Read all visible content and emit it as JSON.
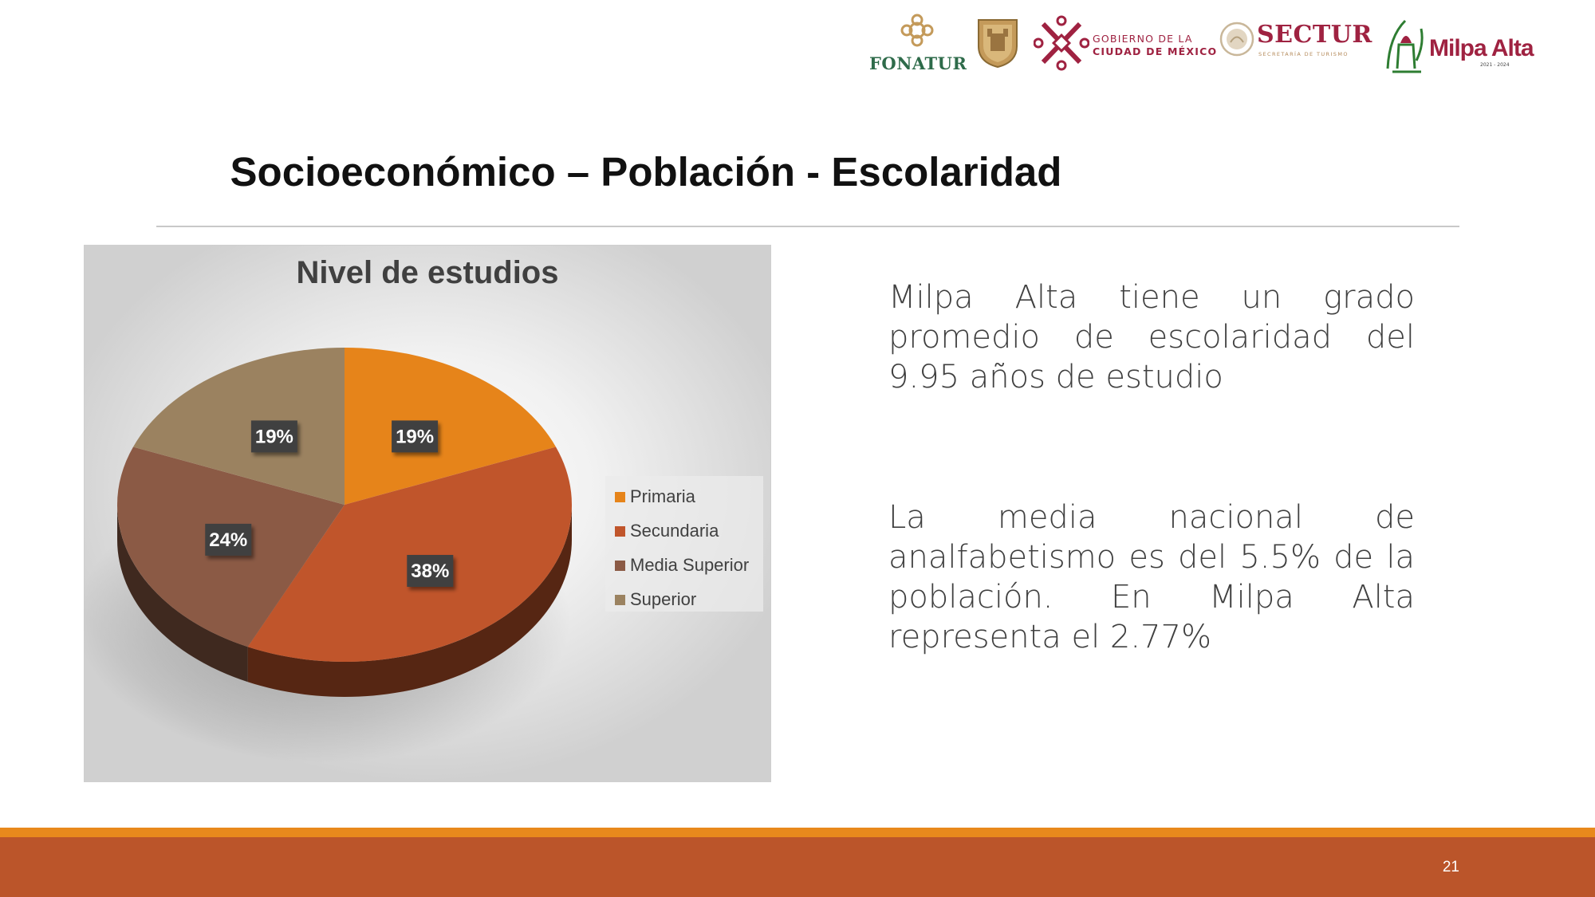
{
  "logos": {
    "fonatur_label": "FONATUR",
    "cdmx_line1": "GOBIERNO DE LA",
    "cdmx_line2": "CIUDAD DE MÉXICO",
    "sectur_label": "SECTUR",
    "sectur_sub": "SECRETARÍA DE TURISMO",
    "milpa_label": "Milpa Alta",
    "milpa_sub": "2021 - 2024",
    "brand_color": "#9f2241"
  },
  "slide": {
    "title": "Socioeconómico – Población - Escolaridad",
    "page_number": "21"
  },
  "text": {
    "paragraph_1": "Milpa Alta tiene un grado promedio de escolaridad del 9.95  años de estudio",
    "paragraph_2": "La media nacional de analfabetismo es del 5.5% de la población. En Milpa Alta representa el 2.77%"
  },
  "colors": {
    "footer_strip": "#e8891c",
    "footer_band": "#bb552a"
  },
  "chart_data": {
    "type": "pie",
    "title": "Nivel de estudios",
    "categories": [
      "Primaria",
      "Secundaria",
      "Media Superior",
      "Superior"
    ],
    "values": [
      19,
      38,
      24,
      19
    ],
    "labels": [
      "19%",
      "38%",
      "24%",
      "19%"
    ],
    "colors": [
      "#e6841a",
      "#c0552b",
      "#8b5a45",
      "#9b8260"
    ],
    "legend_position": "right",
    "style": "3d-perspective"
  }
}
